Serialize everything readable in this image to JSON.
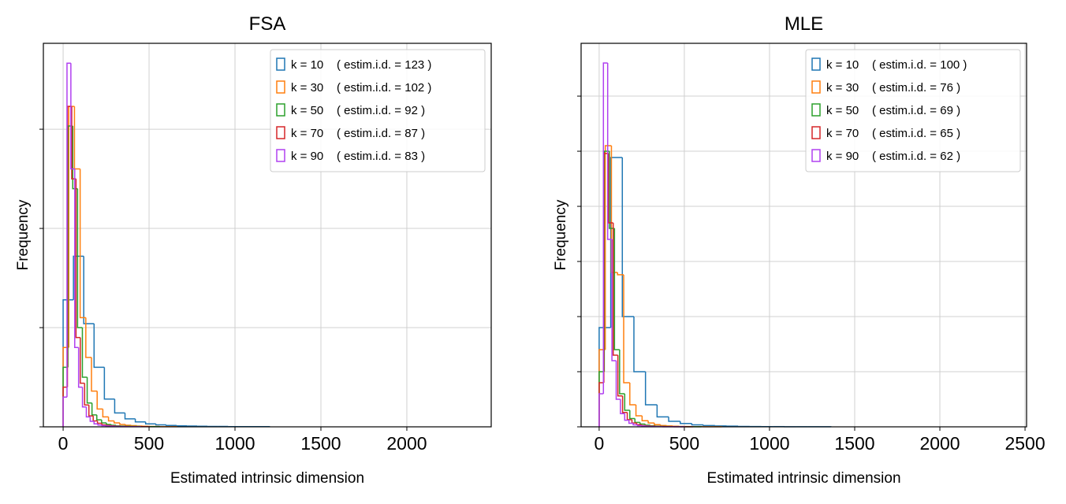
{
  "chart_data": [
    {
      "type": "histogram",
      "title": "FSA",
      "xlabel": "Estimated intrinsic dimension",
      "ylabel": "Frequency",
      "xlim": [
        -115,
        2491
      ],
      "xticks": [
        0,
        500,
        1000,
        1500,
        2000
      ],
      "ylim": [
        0,
        1933
      ],
      "yticks": [
        0,
        500,
        1000,
        1500
      ],
      "ytick_labels": false,
      "grid": true,
      "legend": "upper right",
      "series": [
        {
          "name": "k = 10    ( estim.i.d. = 123 )",
          "color": "#1f77b4",
          "bins": [
            0,
            60,
            120,
            180,
            240,
            300,
            360,
            420,
            480,
            540,
            600,
            660,
            720,
            780,
            840,
            900,
            960,
            1020,
            1080,
            1140,
            1200
          ],
          "values": [
            640,
            860,
            520,
            300,
            140,
            70,
            40,
            25,
            15,
            10,
            7,
            5,
            4,
            3,
            2,
            2,
            1,
            1,
            1,
            1
          ]
        },
        {
          "name": "k = 30    ( estim.i.d. = 102 )",
          "color": "#ff7f0e",
          "bins": [
            0,
            33,
            66,
            99,
            132,
            165,
            198,
            231,
            264,
            297,
            330,
            363,
            396,
            429,
            462,
            495,
            528,
            561,
            594,
            627,
            660
          ],
          "values": [
            400,
            1615,
            1300,
            550,
            350,
            180,
            90,
            50,
            30,
            20,
            12,
            8,
            6,
            4,
            3,
            2,
            2,
            1,
            1,
            1
          ]
        },
        {
          "name": "k = 50    ( estim.i.d. = 92 )",
          "color": "#2ca02c",
          "bins": [
            0,
            28,
            56,
            84,
            112,
            140,
            168,
            196,
            224,
            252,
            280,
            308,
            336,
            364,
            392,
            420,
            448,
            476,
            504,
            532,
            560
          ],
          "values": [
            300,
            1516,
            1200,
            500,
            250,
            120,
            60,
            35,
            20,
            12,
            8,
            5,
            4,
            3,
            2,
            2,
            1,
            1,
            1,
            1
          ]
        },
        {
          "name": "k = 70    ( estim.i.d. = 87 )",
          "color": "#d62728",
          "bins": [
            0,
            25,
            50,
            75,
            100,
            125,
            150,
            175,
            200,
            225,
            250,
            275,
            300,
            325,
            350,
            375,
            400,
            425,
            450,
            475,
            500
          ],
          "values": [
            200,
            1615,
            1250,
            450,
            220,
            110,
            55,
            30,
            18,
            10,
            7,
            5,
            3,
            2,
            2,
            1,
            1,
            1,
            1,
            1
          ]
        },
        {
          "name": "k = 90    ( estim.i.d. = 83 )",
          "color": "#b040f0",
          "bins": [
            0,
            22.5,
            45,
            67.5,
            90,
            112.5,
            135,
            157.5,
            180,
            202.5,
            225,
            247.5,
            270,
            292.5,
            315,
            337.5,
            360,
            382.5,
            405,
            427.5,
            450
          ],
          "values": [
            150,
            1833,
            1300,
            400,
            200,
            100,
            50,
            28,
            15,
            9,
            6,
            4,
            3,
            2,
            2,
            1,
            1,
            1,
            1,
            1
          ]
        }
      ]
    },
    {
      "type": "histogram",
      "title": "MLE",
      "xlabel": "Estimated intrinsic dimension",
      "ylabel": "Frequency",
      "xlim": [
        -106,
        2509
      ],
      "xticks": [
        0,
        500,
        1000,
        1500,
        2000,
        2500
      ],
      "ylim": [
        0,
        3479
      ],
      "yticks": [
        0,
        500,
        1000,
        1500,
        2000,
        2500,
        3000
      ],
      "ytick_labels": false,
      "grid": true,
      "legend": "upper right",
      "series": [
        {
          "name": "k = 10    ( estim.i.d. = 100 )",
          "color": "#1f77b4",
          "bins": [
            0,
            68,
            136,
            204,
            272,
            340,
            408,
            476,
            544,
            612,
            680,
            748,
            816,
            884,
            952,
            1020,
            1088,
            1156,
            1224,
            1292,
            1360
          ],
          "values": [
            900,
            2443,
            1000,
            500,
            200,
            90,
            50,
            30,
            18,
            12,
            8,
            6,
            4,
            3,
            2,
            2,
            1,
            1,
            1,
            1
          ]
        },
        {
          "name": "k = 30    ( estim.i.d. = 76 )",
          "color": "#ff7f0e",
          "bins": [
            0,
            36,
            72,
            108,
            144,
            180,
            216,
            252,
            288,
            324,
            360,
            396,
            432,
            468,
            504,
            540,
            576,
            612,
            648,
            684,
            720
          ],
          "values": [
            700,
            2550,
            1400,
            1380,
            400,
            200,
            100,
            55,
            35,
            20,
            12,
            8,
            5,
            4,
            3,
            2,
            2,
            1,
            1,
            1
          ]
        },
        {
          "name": "k = 50    ( estim.i.d. = 69 )",
          "color": "#2ca02c",
          "bins": [
            0,
            30,
            60,
            90,
            120,
            150,
            180,
            210,
            240,
            270,
            300,
            330,
            360,
            390,
            420,
            450,
            480,
            510,
            540,
            570,
            600
          ],
          "values": [
            500,
            2500,
            1800,
            700,
            300,
            150,
            75,
            40,
            25,
            15,
            10,
            6,
            4,
            3,
            2,
            2,
            1,
            1,
            1,
            1
          ]
        },
        {
          "name": "k = 70    ( estim.i.d. = 65 )",
          "color": "#d62728",
          "bins": [
            0,
            27.5,
            55,
            82.5,
            110,
            137.5,
            165,
            192.5,
            220,
            247.5,
            275,
            302.5,
            330,
            357.5,
            385,
            412.5,
            440,
            467.5,
            495,
            522.5,
            550
          ],
          "values": [
            400,
            2480,
            1850,
            650,
            280,
            130,
            65,
            35,
            20,
            12,
            8,
            5,
            4,
            3,
            2,
            2,
            1,
            1,
            1,
            1
          ]
        },
        {
          "name": "k = 90    ( estim.i.d. = 62 )",
          "color": "#b040f0",
          "bins": [
            0,
            25,
            50,
            75,
            100,
            125,
            150,
            175,
            200,
            225,
            250,
            275,
            300,
            325,
            350,
            375,
            400,
            425,
            450,
            475,
            500
          ],
          "values": [
            300,
            3300,
            1700,
            600,
            250,
            120,
            60,
            32,
            18,
            11,
            7,
            5,
            3,
            2,
            2,
            1,
            1,
            1,
            1,
            1
          ]
        }
      ]
    }
  ]
}
